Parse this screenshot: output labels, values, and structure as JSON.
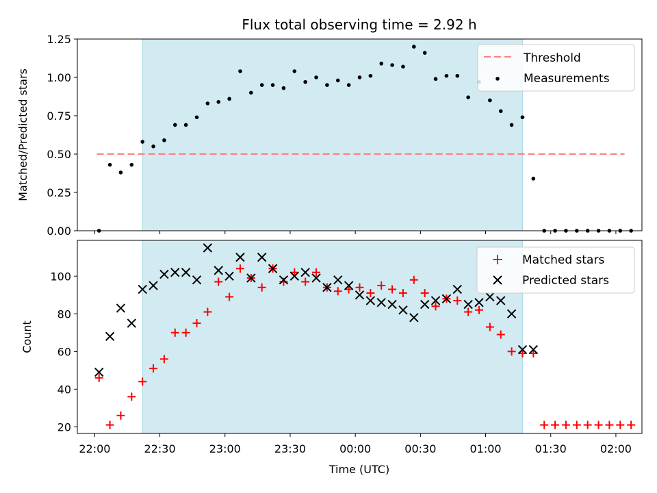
{
  "chart_data": [
    {
      "type": "scatter",
      "title": "Flux total observing time = 2.92 h",
      "xlabel": "",
      "ylabel": "Matched/Predicted stars",
      "xlim": [
        "21:52",
        "02:12"
      ],
      "ylim": [
        0,
        1.25
      ],
      "yticks": [
        "0.00",
        "0.25",
        "0.50",
        "0.75",
        "1.00",
        "1.25"
      ],
      "shaded_interval": [
        "22:22",
        "01:17"
      ],
      "shade_color": "#add8e6",
      "legend_position": "upper right",
      "threshold": {
        "name": "Threshold",
        "value": 0.5,
        "x_range": [
          "22:01",
          "02:04"
        ],
        "color": "#ff7f7f",
        "style": "dashed"
      },
      "series": [
        {
          "name": "Measurements",
          "marker": "dot",
          "color": "#000000",
          "x": [
            "22:02",
            "22:07",
            "22:12",
            "22:17",
            "22:22",
            "22:27",
            "22:32",
            "22:37",
            "22:42",
            "22:47",
            "22:52",
            "22:57",
            "23:02",
            "23:07",
            "23:12",
            "23:17",
            "23:22",
            "23:27",
            "23:32",
            "23:37",
            "23:42",
            "23:47",
            "23:52",
            "23:57",
            "00:02",
            "00:07",
            "00:12",
            "00:17",
            "00:22",
            "00:27",
            "00:32",
            "00:37",
            "00:42",
            "00:47",
            "00:52",
            "00:57",
            "01:02",
            "01:07",
            "01:12",
            "01:17",
            "01:22",
            "01:27",
            "01:32",
            "01:37",
            "01:42",
            "01:47",
            "01:52",
            "01:57",
            "02:02",
            "02:07"
          ],
          "y": [
            0.0,
            0.43,
            0.38,
            0.43,
            0.58,
            0.55,
            0.59,
            0.69,
            0.69,
            0.74,
            0.83,
            0.84,
            0.86,
            1.04,
            0.9,
            0.95,
            0.95,
            0.93,
            1.04,
            0.97,
            1.0,
            0.95,
            0.98,
            0.95,
            1.0,
            1.01,
            1.09,
            1.08,
            1.07,
            1.2,
            1.16,
            0.99,
            1.01,
            1.01,
            0.87,
            0.97,
            0.85,
            0.78,
            0.69,
            0.74,
            0.34,
            0.0,
            0.0,
            0.0,
            0.0,
            0.0,
            0.0,
            0.0,
            0.0,
            0.0
          ]
        }
      ]
    },
    {
      "type": "scatter",
      "title": "",
      "xlabel": "Time (UTC)",
      "ylabel": "Count",
      "xlim": [
        "21:52",
        "02:12"
      ],
      "xticks": [
        "22:00",
        "22:30",
        "23:00",
        "23:30",
        "00:00",
        "00:30",
        "01:00",
        "01:30",
        "02:00"
      ],
      "ylim": [
        16.5,
        119
      ],
      "yticks": [
        "20",
        "40",
        "60",
        "80",
        "100"
      ],
      "shaded_interval": [
        "22:22",
        "01:17"
      ],
      "shade_color": "#add8e6",
      "legend_position": "upper right",
      "series": [
        {
          "name": "Matched stars",
          "marker": "plus",
          "color": "#ff0000",
          "x": [
            "22:02",
            "22:07",
            "22:12",
            "22:17",
            "22:22",
            "22:27",
            "22:32",
            "22:37",
            "22:42",
            "22:47",
            "22:52",
            "22:57",
            "23:02",
            "23:07",
            "23:12",
            "23:17",
            "23:22",
            "23:27",
            "23:32",
            "23:37",
            "23:42",
            "23:47",
            "23:52",
            "23:57",
            "00:02",
            "00:07",
            "00:12",
            "00:17",
            "00:22",
            "00:27",
            "00:32",
            "00:37",
            "00:42",
            "00:47",
            "00:52",
            "00:57",
            "01:02",
            "01:07",
            "01:12",
            "01:17",
            "01:22",
            "01:27",
            "01:32",
            "01:37",
            "01:42",
            "01:47",
            "01:52",
            "01:57",
            "02:02",
            "02:07"
          ],
          "y": [
            46,
            21,
            26,
            36,
            44,
            51,
            56,
            70,
            70,
            75,
            81,
            97,
            89,
            104,
            99,
            94,
            104,
            97,
            102,
            97,
            102,
            94,
            92,
            93,
            94,
            91,
            95,
            93,
            91,
            98,
            91,
            84,
            88,
            87,
            81,
            82,
            73,
            69,
            60,
            59,
            59,
            21,
            21,
            21,
            21,
            21,
            21,
            21,
            21,
            21
          ]
        },
        {
          "name": "Predicted stars",
          "marker": "x",
          "color": "#000000",
          "x": [
            "22:02",
            "22:07",
            "22:12",
            "22:17",
            "22:22",
            "22:27",
            "22:32",
            "22:37",
            "22:42",
            "22:47",
            "22:52",
            "22:57",
            "23:02",
            "23:07",
            "23:12",
            "23:17",
            "23:22",
            "23:27",
            "23:32",
            "23:37",
            "23:42",
            "23:47",
            "23:52",
            "23:57",
            "00:02",
            "00:07",
            "00:12",
            "00:17",
            "00:22",
            "00:27",
            "00:32",
            "00:37",
            "00:42",
            "00:47",
            "00:52",
            "00:57",
            "01:02",
            "01:07",
            "01:12",
            "01:17",
            "01:22"
          ],
          "y": [
            49,
            68,
            83,
            75,
            93,
            95,
            101,
            102,
            102,
            98,
            115,
            103,
            100,
            110,
            99,
            110,
            104,
            98,
            100,
            102,
            99,
            94,
            98,
            95,
            90,
            87,
            86,
            85,
            82,
            78,
            85,
            87,
            88,
            93,
            85,
            86,
            89,
            87,
            80,
            61,
            61
          ]
        }
      ]
    }
  ]
}
